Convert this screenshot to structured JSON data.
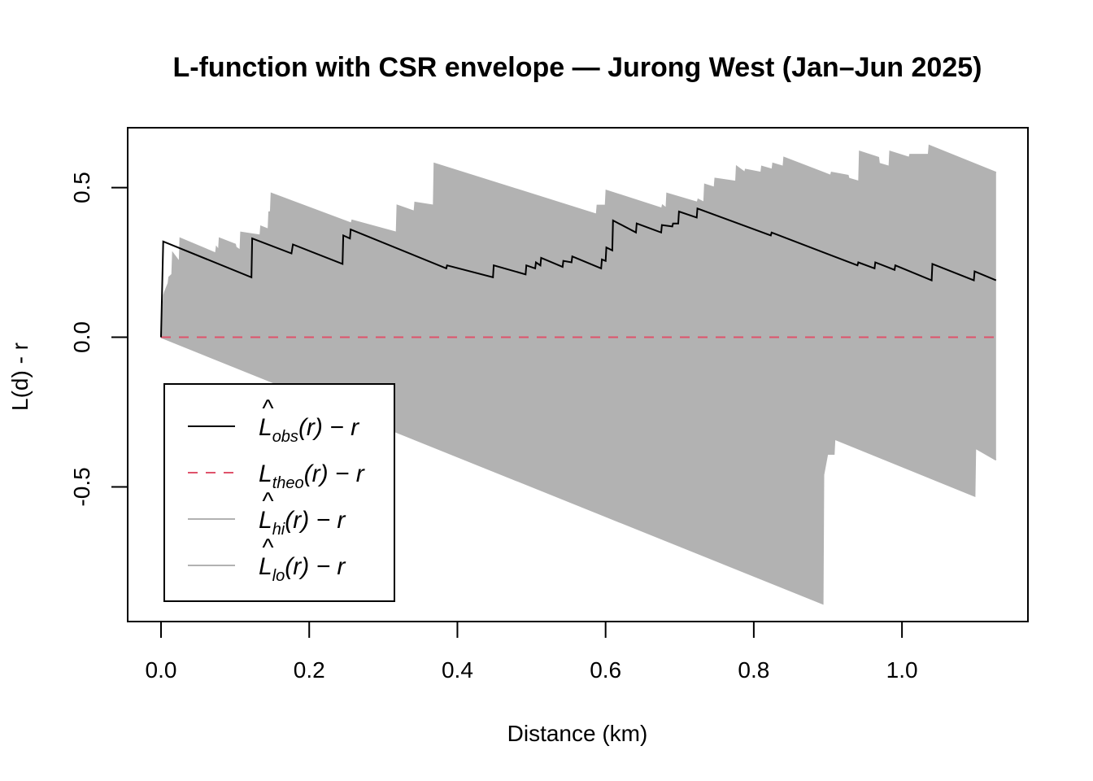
{
  "chart_data": {
    "type": "line",
    "title": "L-function with CSR envelope — Jurong West (Jan–Jun 2025)",
    "xlabel": "Distance (km)",
    "ylabel": "L(d) - r",
    "xlim": [
      -0.045,
      1.17
    ],
    "ylim": [
      -0.95,
      0.7
    ],
    "x_ticks": [
      "0.0",
      "0.2",
      "0.4",
      "0.6",
      "0.8",
      "1.0"
    ],
    "x_tick_values": [
      0.0,
      0.2,
      0.4,
      0.6,
      0.8,
      1.0
    ],
    "y_ticks": [
      "-0.5",
      "0.0",
      "0.5"
    ],
    "y_tick_values": [
      -0.5,
      0.0,
      0.5
    ],
    "legend_position": "bottom-left",
    "colors": {
      "obs": "#000000",
      "theo": "#df536b",
      "envelope": "#b2b2b2",
      "envelope_line": "#b2b2b2"
    },
    "series": [
      {
        "name": "L̂obs(r) − r",
        "main": "L",
        "hat": true,
        "sub": "obs",
        "style": "solid",
        "x": [
          0,
          0.003,
          0.122,
          0.123,
          0.176,
          0.178,
          0.245,
          0.246,
          0.255,
          0.256,
          0.385,
          0.386,
          0.448,
          0.449,
          0.492,
          0.493,
          0.505,
          0.506,
          0.512,
          0.513,
          0.542,
          0.543,
          0.554,
          0.555,
          0.594,
          0.595,
          0.6,
          0.601,
          0.609,
          0.61,
          0.641,
          0.642,
          0.675,
          0.676,
          0.69,
          0.691,
          0.698,
          0.699,
          0.723,
          0.724,
          0.823,
          0.824,
          0.94,
          0.941,
          0.963,
          0.964,
          0.99,
          0.991,
          1.04,
          1.041,
          1.097,
          1.098,
          1.127
        ],
        "values": [
          0.0,
          0.32,
          0.2,
          0.33,
          0.28,
          0.31,
          0.245,
          0.34,
          0.33,
          0.36,
          0.23,
          0.24,
          0.2,
          0.24,
          0.21,
          0.24,
          0.23,
          0.25,
          0.24,
          0.265,
          0.235,
          0.255,
          0.25,
          0.27,
          0.23,
          0.26,
          0.255,
          0.3,
          0.29,
          0.39,
          0.35,
          0.38,
          0.35,
          0.375,
          0.37,
          0.38,
          0.38,
          0.42,
          0.4,
          0.43,
          0.34,
          0.35,
          0.24,
          0.25,
          0.23,
          0.25,
          0.225,
          0.24,
          0.19,
          0.245,
          0.19,
          0.22,
          0.19
        ]
      },
      {
        "name": "Ltheo(r) − r",
        "main": "L",
        "hat": false,
        "sub": "theo",
        "style": "dashed",
        "x": [
          0,
          1.127
        ],
        "values": [
          0,
          0
        ]
      },
      {
        "name": "L̂hi(r) − r",
        "main": "L",
        "hat": true,
        "sub": "hi",
        "style": "solid",
        "x": [
          0,
          0.004,
          0.005,
          0.01,
          0.011,
          0.015,
          0.016,
          0.025,
          0.026,
          0.074,
          0.075,
          0.078,
          0.079,
          0.1,
          0.101,
          0.107,
          0.108,
          0.134,
          0.135,
          0.145,
          0.146,
          0.148,
          0.149,
          0.257,
          0.258,
          0.318,
          0.319,
          0.342,
          0.343,
          0.368,
          0.369,
          0.588,
          0.589,
          0.6,
          0.601,
          0.676,
          0.677,
          0.682,
          0.683,
          0.724,
          0.725,
          0.733,
          0.734,
          0.747,
          0.748,
          0.776,
          0.777,
          0.788,
          0.789,
          0.81,
          0.811,
          0.825,
          0.826,
          0.84,
          0.841,
          0.904,
          0.905,
          0.927,
          0.928,
          0.942,
          0.943,
          0.968,
          0.969,
          0.983,
          0.984,
          1.01,
          1.011,
          1.036,
          1.037,
          1.127
        ],
        "values": [
          0.0,
          0.14,
          0.15,
          0.18,
          0.2,
          0.21,
          0.28,
          0.25,
          0.33,
          0.28,
          0.3,
          0.29,
          0.33,
          0.31,
          0.3,
          0.29,
          0.35,
          0.34,
          0.37,
          0.36,
          0.42,
          0.41,
          0.48,
          0.38,
          0.39,
          0.35,
          0.44,
          0.42,
          0.45,
          0.44,
          0.58,
          0.41,
          0.44,
          0.44,
          0.49,
          0.43,
          0.44,
          0.43,
          0.48,
          0.45,
          0.46,
          0.45,
          0.51,
          0.5,
          0.53,
          0.52,
          0.57,
          0.55,
          0.56,
          0.55,
          0.57,
          0.56,
          0.58,
          0.57,
          0.6,
          0.54,
          0.55,
          0.54,
          0.53,
          0.52,
          0.62,
          0.6,
          0.58,
          0.57,
          0.62,
          0.6,
          0.61,
          0.61,
          0.64,
          0.55
        ]
      },
      {
        "name": "L̂lo(r) − r",
        "main": "L",
        "hat": true,
        "sub": "lo",
        "style": "solid",
        "x": [
          0,
          0.893,
          0.894,
          0.9,
          0.901,
          0.908,
          0.909,
          1.098,
          1.099,
          1.127
        ],
        "values": [
          0.0,
          -0.89,
          -0.46,
          -0.38,
          -0.39,
          -0.39,
          -0.34,
          -0.53,
          -0.37,
          -0.41
        ]
      }
    ]
  }
}
